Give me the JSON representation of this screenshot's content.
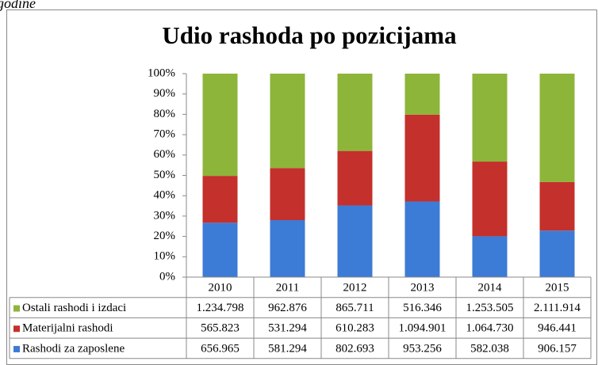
{
  "fragment": "godine",
  "chart_data": {
    "type": "bar",
    "stacking": "percent",
    "title": "Udio rashoda po pozicijama",
    "categories": [
      "2010",
      "2011",
      "2012",
      "2013",
      "2014",
      "2015"
    ],
    "series": [
      {
        "name": "Ostali rashodi i izdaci",
        "color": "#8db53a",
        "values": [
          1234798,
          962876,
          865711,
          516346,
          1253505,
          2111914
        ],
        "value_labels": [
          "1.234.798",
          "962.876",
          "865.711",
          "516.346",
          "1.253.505",
          "2.111.914"
        ]
      },
      {
        "name": "Materijalni rashodi",
        "color": "#c4302b",
        "values": [
          565823,
          531294,
          610283,
          1094901,
          1064730,
          946441
        ],
        "value_labels": [
          "565.823",
          "531.294",
          "610.283",
          "1.094.901",
          "1.064.730",
          "946.441"
        ]
      },
      {
        "name": "Rashodi za zaposlene",
        "color": "#3c7bd6",
        "values": [
          656965,
          581294,
          802693,
          953256,
          582038,
          906157
        ],
        "value_labels": [
          "656.965",
          "581.294",
          "802.693",
          "953.256",
          "582.038",
          "906.157"
        ]
      }
    ],
    "ylim": [
      0,
      100
    ],
    "yticks": [
      {
        "value": 0,
        "label": "0%"
      },
      {
        "value": 10,
        "label": "10%"
      },
      {
        "value": 20,
        "label": "20%"
      },
      {
        "value": 30,
        "label": "30%"
      },
      {
        "value": 40,
        "label": "40%"
      },
      {
        "value": 50,
        "label": "50%"
      },
      {
        "value": 60,
        "label": "60%"
      },
      {
        "value": 70,
        "label": "70%"
      },
      {
        "value": 80,
        "label": "80%"
      },
      {
        "value": 90,
        "label": "90%"
      },
      {
        "value": 100,
        "label": "100%"
      }
    ],
    "grid": false
  }
}
